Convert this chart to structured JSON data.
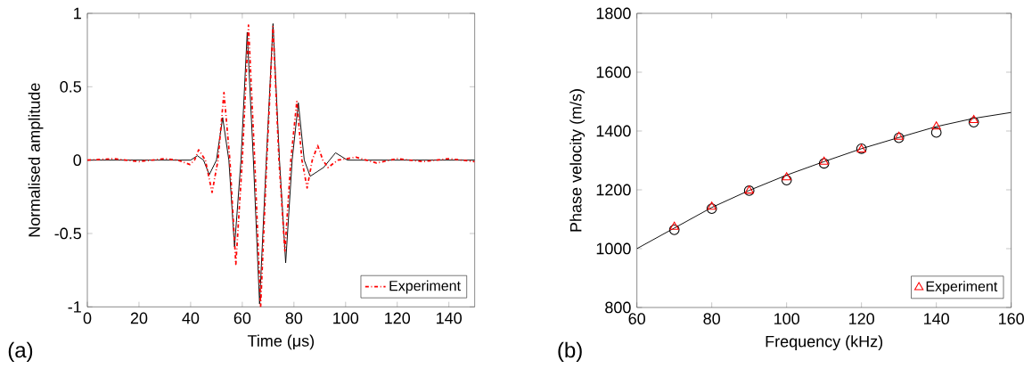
{
  "chart_data": [
    {
      "type": "line",
      "xlabel": "Time (μs)",
      "ylabel": "Normalised amplitude",
      "annotations": [
        "(a)"
      ],
      "xlim": [
        0,
        150
      ],
      "ylim": [
        -1,
        1
      ],
      "xticks": [
        0,
        20,
        40,
        60,
        80,
        100,
        120,
        140
      ],
      "yticks": [
        -1,
        -0.5,
        0,
        0.5,
        1
      ],
      "legend": "bottom right",
      "grid": false,
      "series": [
        {
          "color": "#000000",
          "line_style": "solid",
          "x": [
            0,
            20,
            40,
            42.6,
            45,
            47.2,
            50,
            52.4,
            54.8,
            57.0,
            59.5,
            61.9,
            64.3,
            66.7,
            69.3,
            71.9,
            74.4,
            76.8,
            79.3,
            81.7,
            84,
            86.3,
            91.5,
            93.8,
            96.1,
            100.7,
            120,
            150
          ],
          "values": [
            0,
            0,
            0,
            0.03,
            0,
            -0.1,
            0,
            0.29,
            0,
            -0.59,
            0,
            0.87,
            0,
            -0.98,
            0,
            0.93,
            0,
            -0.7,
            0,
            0.39,
            0,
            -0.11,
            -0.05,
            0,
            0.05,
            0,
            0,
            0
          ]
        },
        {
          "name": "Experiment",
          "color": "#ff0000",
          "line_style": "dashdot",
          "x": [
            0,
            10,
            20,
            30,
            35,
            39.7,
            41.5,
            43.1,
            45.7,
            48.3,
            50.6,
            52.9,
            55.2,
            57.5,
            60,
            62.4,
            64.8,
            67.1,
            69.5,
            71.9,
            74.2,
            76.5,
            78.8,
            81.1,
            83.1,
            85.1,
            87.1,
            89.2,
            91.2,
            93.2,
            97,
            104,
            112,
            120,
            130,
            140,
            150
          ],
          "values": [
            0,
            0.01,
            -0.01,
            0.01,
            0,
            -0.03,
            0,
            0.07,
            0,
            -0.22,
            0,
            0.46,
            0,
            -0.71,
            0,
            0.92,
            0,
            -1.0,
            0,
            0.91,
            0,
            -0.62,
            0,
            0.4,
            0,
            -0.19,
            0,
            0.1,
            0,
            -0.05,
            0,
            0.02,
            -0.02,
            0.01,
            -0.01,
            0.01,
            -0.01
          ]
        }
      ]
    },
    {
      "type": "scatter",
      "xlabel": "Frequency (kHz)",
      "ylabel": "Phase velocity (m/s)",
      "annotations": [
        "(b)"
      ],
      "xlim": [
        60,
        160
      ],
      "ylim": [
        800,
        1800
      ],
      "xticks": [
        60,
        80,
        100,
        120,
        140,
        160
      ],
      "yticks": [
        800,
        1000,
        1200,
        1400,
        1600,
        1800
      ],
      "legend": "bottom right",
      "grid": false,
      "series": [
        {
          "type": "line",
          "color": "#000000",
          "marker": "none",
          "x": [
            60,
            70,
            80,
            90,
            100,
            110,
            120,
            130,
            140,
            150,
            160
          ],
          "values": [
            1000,
            1070,
            1140,
            1198,
            1250,
            1296,
            1340,
            1378,
            1415,
            1443,
            1463
          ]
        },
        {
          "color": "#000000",
          "marker": "circle",
          "x": [
            70,
            80,
            90,
            100,
            110,
            120,
            130,
            140,
            150
          ],
          "values": [
            1064,
            1136,
            1197,
            1233,
            1290,
            1340,
            1377,
            1395,
            1430
          ]
        },
        {
          "name": "Experiment",
          "color": "#ff0000",
          "marker": "triangle",
          "x": [
            70,
            80,
            90,
            100,
            110,
            120,
            130,
            140,
            150
          ],
          "values": [
            1074,
            1142,
            1197,
            1242,
            1295,
            1337,
            1380,
            1415,
            1437
          ]
        }
      ]
    }
  ]
}
